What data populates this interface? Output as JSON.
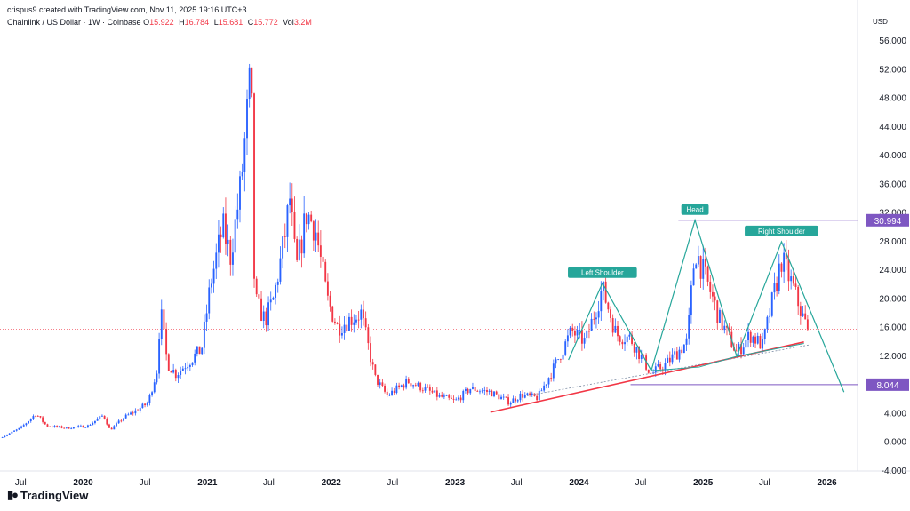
{
  "header": {
    "attribution": "crispus9 created with TradingView.com, Nov 11, 2025 19:16 UTC+3"
  },
  "legend": {
    "symbol": "Chainlink / US Dollar · 1W · Coinbase",
    "o_label": "O",
    "o_value": "15.922",
    "h_label": "H",
    "h_value": "16.784",
    "l_label": "L",
    "l_value": "15.681",
    "c_label": "C",
    "c_value": "15.772",
    "vol_label": "Vol",
    "vol_value": "3.2M"
  },
  "logo": {
    "text": "TradingView",
    "icon": "tradingview-logo-icon"
  },
  "colors": {
    "up": "#2962ff",
    "down": "#f23645",
    "trend": "#f23645",
    "pattern": "#26a69a",
    "level": "#7e57c2",
    "price_line": "#f23645"
  },
  "chart_data": {
    "type": "candlestick",
    "currency_label": "USD",
    "ylim": [
      -4,
      58
    ],
    "y_ticks": [
      56,
      52,
      48,
      44,
      40,
      36,
      32,
      28,
      24,
      20,
      16,
      12,
      8,
      4,
      0,
      -4
    ],
    "y_tick_labels": [
      "56.000",
      "52.000",
      "48.000",
      "44.000",
      "40.000",
      "36.000",
      "32.000",
      "28.000",
      "24.000",
      "20.000",
      "16.000",
      "12.000",
      "8.000",
      "4.000",
      "0.000",
      "-4.000"
    ],
    "x_range": [
      "2019-05-01",
      "2026-04-01"
    ],
    "x_ticks": [
      {
        "date": "2019-07-01",
        "label": "Jul",
        "major": false
      },
      {
        "date": "2020-01-01",
        "label": "2020",
        "major": true
      },
      {
        "date": "2020-07-01",
        "label": "Jul",
        "major": false
      },
      {
        "date": "2021-01-01",
        "label": "2021",
        "major": true
      },
      {
        "date": "2021-07-01",
        "label": "Jul",
        "major": false
      },
      {
        "date": "2022-01-01",
        "label": "2022",
        "major": true
      },
      {
        "date": "2022-07-01",
        "label": "Jul",
        "major": false
      },
      {
        "date": "2023-01-01",
        "label": "2023",
        "major": true
      },
      {
        "date": "2023-07-01",
        "label": "Jul",
        "major": false
      },
      {
        "date": "2024-01-01",
        "label": "2024",
        "major": true
      },
      {
        "date": "2024-07-01",
        "label": "Jul",
        "major": false
      },
      {
        "date": "2025-01-01",
        "label": "2025",
        "major": true
      },
      {
        "date": "2025-07-01",
        "label": "Jul",
        "major": false
      },
      {
        "date": "2026-01-01",
        "label": "2026",
        "major": true
      }
    ],
    "current_price": 15.772,
    "levels": [
      {
        "value": 30.994,
        "label": "30.994",
        "from": "2024-10-20"
      },
      {
        "value": 8.044,
        "label": "8.044",
        "from": "2024-06-01"
      }
    ],
    "pattern_labels": [
      {
        "text": "Left Shoulder",
        "date": "2024-03-10",
        "value": 22.2
      },
      {
        "text": "Head",
        "date": "2024-12-08",
        "value": 31.0
      },
      {
        "text": "Right Shoulder",
        "date": "2025-08-20",
        "value": 28.0
      }
    ],
    "neckline": [
      [
        "2024-08-01",
        10.0
      ],
      [
        "2024-12-20",
        10.5
      ],
      [
        "2025-04-10",
        12.0
      ],
      [
        "2025-10-25",
        13.8
      ]
    ],
    "pattern_path": [
      [
        "2023-12-01",
        11.5
      ],
      [
        "2024-03-10",
        22.2
      ],
      [
        "2024-08-01",
        10.0
      ],
      [
        "2024-12-08",
        31.0
      ],
      [
        "2025-04-10",
        12.0
      ],
      [
        "2025-08-20",
        28.0
      ],
      [
        "2026-02-20",
        7.0
      ]
    ],
    "trendline": [
      [
        "2023-04-15",
        4.2
      ],
      [
        "2025-10-25",
        14.0
      ]
    ],
    "dotted_trendline": [
      [
        "2023-08-01",
        6.5
      ],
      [
        "2025-11-10",
        13.6
      ]
    ],
    "price_path": [
      [
        "2019-05-01",
        0.6
      ],
      [
        "2019-07-01",
        2.0
      ],
      [
        "2019-08-15",
        4.0
      ],
      [
        "2019-09-15",
        2.3
      ],
      [
        "2019-11-15",
        2.0
      ],
      [
        "2020-01-15",
        2.3
      ],
      [
        "2020-03-01",
        3.8
      ],
      [
        "2020-03-20",
        1.7
      ],
      [
        "2020-05-01",
        3.5
      ],
      [
        "2020-06-01",
        4.3
      ],
      [
        "2020-07-10",
        5.5
      ],
      [
        "2020-08-05",
        10.0
      ],
      [
        "2020-08-16",
        18.5
      ],
      [
        "2020-09-05",
        11.0
      ],
      [
        "2020-10-01",
        9.5
      ],
      [
        "2020-11-01",
        11.0
      ],
      [
        "2020-12-15",
        13.0
      ],
      [
        "2021-01-10",
        22.0
      ],
      [
        "2021-02-15",
        30.0
      ],
      [
        "2021-03-10",
        26.0
      ],
      [
        "2021-04-10",
        36.0
      ],
      [
        "2021-05-10",
        52.0
      ],
      [
        "2021-05-20",
        20.0
      ],
      [
        "2021-06-20",
        17.0
      ],
      [
        "2021-07-15",
        20.0
      ],
      [
        "2021-08-15",
        28.0
      ],
      [
        "2021-09-01",
        34.0
      ],
      [
        "2021-09-20",
        24.0
      ],
      [
        "2021-10-20",
        32.0
      ],
      [
        "2021-11-15",
        30.0
      ],
      [
        "2021-12-20",
        20.0
      ],
      [
        "2022-01-20",
        16.0
      ],
      [
        "2022-02-20",
        17.0
      ],
      [
        "2022-03-30",
        18.0
      ],
      [
        "2022-05-10",
        9.0
      ],
      [
        "2022-06-15",
        6.5
      ],
      [
        "2022-08-15",
        8.5
      ],
      [
        "2022-10-01",
        7.5
      ],
      [
        "2022-11-10",
        6.5
      ],
      [
        "2023-01-01",
        5.7
      ],
      [
        "2023-02-15",
        7.5
      ],
      [
        "2023-04-15",
        7.0
      ],
      [
        "2023-06-10",
        5.6
      ],
      [
        "2023-07-15",
        6.6
      ],
      [
        "2023-09-01",
        6.2
      ],
      [
        "2023-10-20",
        10.5
      ],
      [
        "2023-12-10",
        15.5
      ],
      [
        "2024-01-20",
        14.0
      ],
      [
        "2024-03-10",
        21.5
      ],
      [
        "2024-04-20",
        15.0
      ],
      [
        "2024-06-01",
        14.5
      ],
      [
        "2024-08-01",
        9.5
      ],
      [
        "2024-09-15",
        11.0
      ],
      [
        "2024-11-15",
        14.0
      ],
      [
        "2024-12-08",
        27.0
      ],
      [
        "2025-01-15",
        22.0
      ],
      [
        "2025-02-20",
        17.0
      ],
      [
        "2025-04-10",
        12.5
      ],
      [
        "2025-05-20",
        15.0
      ],
      [
        "2025-06-25",
        13.5
      ],
      [
        "2025-08-20",
        25.5
      ],
      [
        "2025-09-20",
        22.0
      ],
      [
        "2025-10-25",
        17.0
      ],
      [
        "2025-11-10",
        15.77
      ]
    ]
  }
}
